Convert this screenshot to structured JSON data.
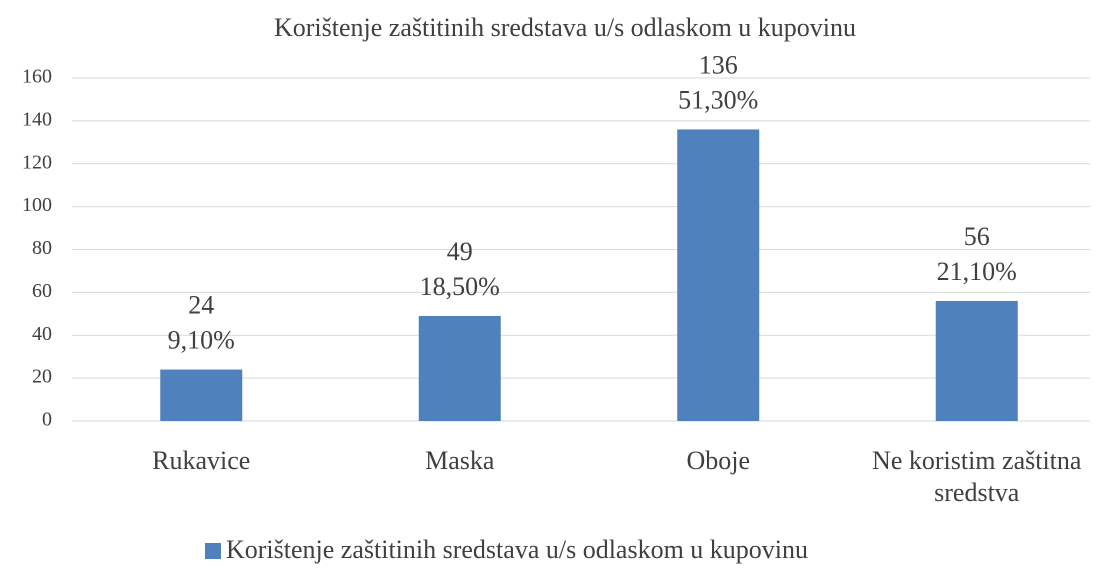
{
  "chart_data": {
    "type": "bar",
    "title": "Korištenje zaštitinih sredstava u/s odlaskom u kupovinu",
    "categories": [
      "Rukavice",
      "Maska",
      "Oboje",
      "Ne koristim zaštitna sredstva"
    ],
    "series": [
      {
        "name": "Korištenje zaštitinih sredstava u/s odlaskom u kupovinu",
        "color": "#4f81bd",
        "values": [
          24,
          49,
          136,
          56
        ]
      }
    ],
    "percentages": [
      9.1,
      18.5,
      51.3,
      21.1
    ],
    "percentage_labels": [
      "9,10%",
      "18,50%",
      "51,30%",
      "21,10%"
    ],
    "ylim": [
      0,
      160
    ],
    "yticks": [
      0,
      20,
      40,
      60,
      80,
      100,
      120,
      140,
      160
    ],
    "grid": true
  }
}
